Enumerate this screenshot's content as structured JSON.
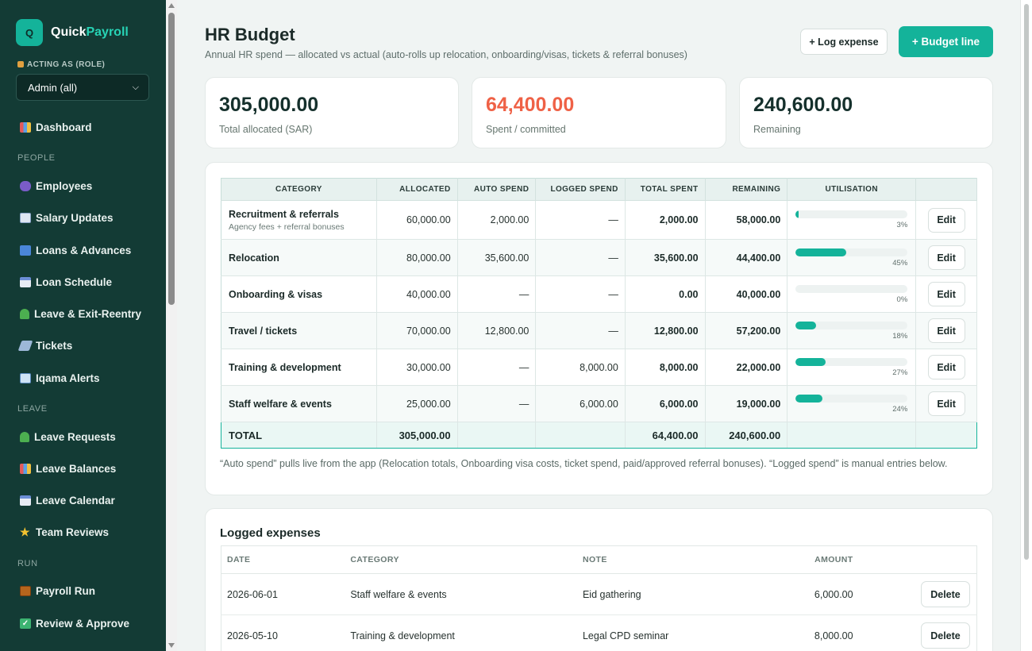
{
  "app": {
    "logo_letter": "Q",
    "name_part1": "Quick",
    "name_part2": "Payroll"
  },
  "sidebar": {
    "role_label": "ACTING AS (ROLE)",
    "role_value": "Admin (all)",
    "dashboard": "Dashboard",
    "sections": {
      "people": "PEOPLE",
      "leave": "LEAVE",
      "run": "RUN"
    },
    "items": {
      "employees": "Employees",
      "salary_updates": "Salary Updates",
      "loans_advances": "Loans & Advances",
      "loan_schedule": "Loan Schedule",
      "leave_exit": "Leave & Exit-Reentry",
      "tickets": "Tickets",
      "iqama_alerts": "Iqama Alerts",
      "leave_requests": "Leave Requests",
      "leave_balances": "Leave Balances",
      "leave_calendar": "Leave Calendar",
      "team_reviews": "Team Reviews",
      "payroll_run": "Payroll Run",
      "review_approve": "Review & Approve"
    }
  },
  "header": {
    "title": "HR Budget",
    "subtitle": "Annual HR spend — allocated vs actual (auto-rolls up relocation, onboarding/visas, tickets & referral bonuses)",
    "log_expense_label": "+ Log expense",
    "budget_line_label": "+ Budget line"
  },
  "stats": {
    "allocated": {
      "value": "305,000.00",
      "label": "Total allocated (SAR)"
    },
    "spent": {
      "value": "64,400.00",
      "label": "Spent / committed",
      "color": "#ef6146"
    },
    "remaining": {
      "value": "240,600.00",
      "label": "Remaining"
    }
  },
  "budget": {
    "columns": {
      "category": "CATEGORY",
      "allocated": "ALLOCATED",
      "auto_spend": "AUTO SPEND",
      "logged_spend": "LOGGED SPEND",
      "total_spent": "TOTAL SPENT",
      "remaining": "REMAINING",
      "utilisation": "UTILISATION"
    },
    "edit_label": "Edit",
    "rows": [
      {
        "name": "Recruitment & referrals",
        "sub": "Agency fees + referral bonuses",
        "allocated": "60,000.00",
        "auto": "2,000.00",
        "logged": "—",
        "total": "2,000.00",
        "remaining": "58,000.00",
        "util": 3,
        "util_label": "3%"
      },
      {
        "name": "Relocation",
        "sub": "",
        "allocated": "80,000.00",
        "auto": "35,600.00",
        "logged": "—",
        "total": "35,600.00",
        "remaining": "44,400.00",
        "util": 45,
        "util_label": "45%"
      },
      {
        "name": "Onboarding & visas",
        "sub": "",
        "allocated": "40,000.00",
        "auto": "—",
        "logged": "—",
        "total": "0.00",
        "remaining": "40,000.00",
        "util": 0,
        "util_label": "0%"
      },
      {
        "name": "Travel / tickets",
        "sub": "",
        "allocated": "70,000.00",
        "auto": "12,800.00",
        "logged": "—",
        "total": "12,800.00",
        "remaining": "57,200.00",
        "util": 18,
        "util_label": "18%"
      },
      {
        "name": "Training & development",
        "sub": "",
        "allocated": "30,000.00",
        "auto": "—",
        "logged": "8,000.00",
        "total": "8,000.00",
        "remaining": "22,000.00",
        "util": 27,
        "util_label": "27%"
      },
      {
        "name": "Staff welfare & events",
        "sub": "",
        "allocated": "25,000.00",
        "auto": "—",
        "logged": "6,000.00",
        "total": "6,000.00",
        "remaining": "19,000.00",
        "util": 24,
        "util_label": "24%"
      }
    ],
    "total": {
      "label": "TOTAL",
      "allocated": "305,000.00",
      "total": "64,400.00",
      "remaining": "240,600.00"
    },
    "note": "“Auto spend” pulls live from the app (Relocation totals, Onboarding visa costs, ticket spend, paid/approved referral bonuses). “Logged spend” is manual entries below."
  },
  "expenses": {
    "title": "Logged expenses",
    "columns": {
      "date": "DATE",
      "category": "CATEGORY",
      "note": "NOTE",
      "amount": "AMOUNT"
    },
    "delete_label": "Delete",
    "rows": [
      {
        "date": "2026-06-01",
        "category": "Staff welfare & events",
        "note": "Eid gathering",
        "amount": "6,000.00"
      },
      {
        "date": "2026-05-10",
        "category": "Training & development",
        "note": "Legal CPD seminar",
        "amount": "8,000.00"
      }
    ]
  },
  "colors": {
    "accent": "#14b39a",
    "sidebar": "#133b35",
    "danger": "#ef6146"
  }
}
